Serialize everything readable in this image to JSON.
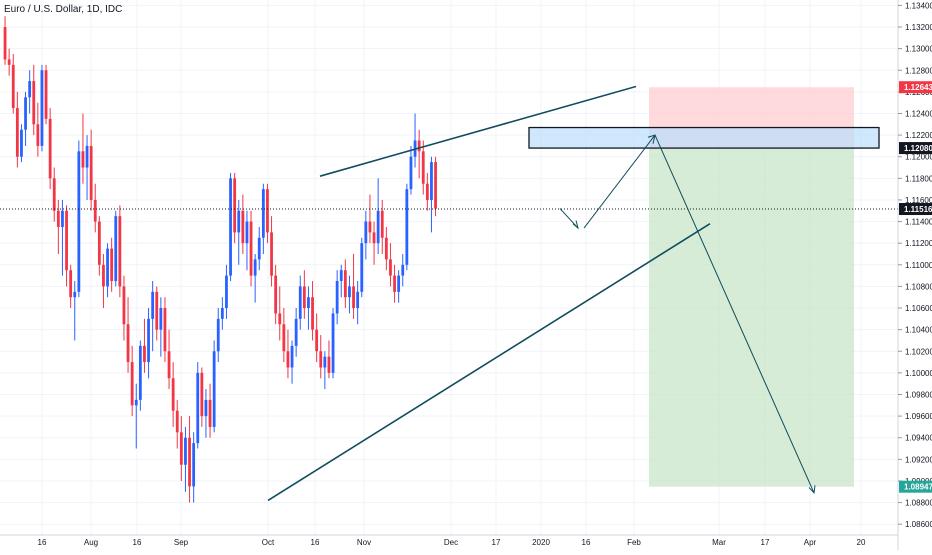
{
  "header": {
    "symbol_title": "Euro / U.S. Dollar, 1D, IDC"
  },
  "colors": {
    "up": "#2962ff",
    "down": "#f23645",
    "trendline": "#0f4c5c",
    "arrow": "#0f4c5c",
    "grid": "#f0f3fa",
    "axis_text": "#131722",
    "target_zone": "#c8e6c9",
    "stop_zone": "#ffcdd2",
    "resistance_box": "#bbdefb",
    "badge_red": "#f23645",
    "badge_green": "#26a69a",
    "badge_dark": "#131722"
  },
  "chart_data": {
    "type": "candlestick",
    "title": "Euro / U.S. Dollar, 1D, IDC",
    "xlabel": "",
    "ylabel": "",
    "ylim": [
      1.085,
      1.1345
    ],
    "y_ticks": [
      "1.13400",
      "1.13200",
      "1.13000",
      "1.12800",
      "1.12600",
      "1.12400",
      "1.12200",
      "1.12000",
      "1.11800",
      "1.11600",
      "1.11400",
      "1.11200",
      "1.11000",
      "1.10800",
      "1.10600",
      "1.10400",
      "1.10200",
      "1.10000",
      "1.09800",
      "1.09600",
      "1.09400",
      "1.09200",
      "1.09000",
      "1.08800",
      "1.08600"
    ],
    "x_ticks": [
      "16",
      "Aug",
      "16",
      "Sep",
      "Oct",
      "16",
      "Nov",
      "Dec",
      "17",
      "2020",
      "16",
      "Feb",
      "Mar",
      "17",
      "Apr",
      "20"
    ],
    "grid": true,
    "price_badges": [
      {
        "label": "1.12643",
        "value": 1.12643,
        "style": "red"
      },
      {
        "label": "1.12080",
        "value": 1.1208,
        "style": "dark"
      },
      {
        "label": "1.11516",
        "value": 1.11516,
        "style": "dark"
      },
      {
        "label": "1.08947",
        "value": 1.08947,
        "style": "green"
      }
    ],
    "current_price": 1.11516,
    "candles": [
      {
        "o": 1.132,
        "h": 1.133,
        "l": 1.1285,
        "c": 1.129
      },
      {
        "o": 1.129,
        "h": 1.13,
        "l": 1.1275,
        "c": 1.1285
      },
      {
        "o": 1.1285,
        "h": 1.1295,
        "l": 1.124,
        "c": 1.1245
      },
      {
        "o": 1.1245,
        "h": 1.126,
        "l": 1.119,
        "c": 1.12
      },
      {
        "o": 1.12,
        "h": 1.123,
        "l": 1.1195,
        "c": 1.1225
      },
      {
        "o": 1.1225,
        "h": 1.126,
        "l": 1.121,
        "c": 1.1255
      },
      {
        "o": 1.1255,
        "h": 1.128,
        "l": 1.124,
        "c": 1.127
      },
      {
        "o": 1.127,
        "h": 1.1285,
        "l": 1.122,
        "c": 1.123
      },
      {
        "o": 1.123,
        "h": 1.125,
        "l": 1.12,
        "c": 1.121
      },
      {
        "o": 1.121,
        "h": 1.1285,
        "l": 1.1205,
        "c": 1.128
      },
      {
        "o": 1.128,
        "h": 1.1285,
        "l": 1.123,
        "c": 1.1235
      },
      {
        "o": 1.1235,
        "h": 1.1245,
        "l": 1.117,
        "c": 1.118
      },
      {
        "o": 1.118,
        "h": 1.119,
        "l": 1.114,
        "c": 1.115
      },
      {
        "o": 1.115,
        "h": 1.116,
        "l": 1.111,
        "c": 1.1135
      },
      {
        "o": 1.1135,
        "h": 1.116,
        "l": 1.109,
        "c": 1.115
      },
      {
        "o": 1.115,
        "h": 1.1155,
        "l": 1.108,
        "c": 1.1095
      },
      {
        "o": 1.1095,
        "h": 1.11,
        "l": 1.106,
        "c": 1.107
      },
      {
        "o": 1.107,
        "h": 1.1085,
        "l": 1.103,
        "c": 1.1075
      },
      {
        "o": 1.1075,
        "h": 1.1215,
        "l": 1.107,
        "c": 1.1205
      },
      {
        "o": 1.1205,
        "h": 1.124,
        "l": 1.1175,
        "c": 1.119
      },
      {
        "o": 1.119,
        "h": 1.122,
        "l": 1.116,
        "c": 1.121
      },
      {
        "o": 1.121,
        "h": 1.1225,
        "l": 1.115,
        "c": 1.116
      },
      {
        "o": 1.116,
        "h": 1.1175,
        "l": 1.113,
        "c": 1.114
      },
      {
        "o": 1.114,
        "h": 1.1145,
        "l": 1.109,
        "c": 1.11
      },
      {
        "o": 1.11,
        "h": 1.111,
        "l": 1.106,
        "c": 1.108
      },
      {
        "o": 1.108,
        "h": 1.112,
        "l": 1.107,
        "c": 1.1115
      },
      {
        "o": 1.1115,
        "h": 1.1125,
        "l": 1.1075,
        "c": 1.1085
      },
      {
        "o": 1.1085,
        "h": 1.115,
        "l": 1.108,
        "c": 1.1145
      },
      {
        "o": 1.1145,
        "h": 1.1155,
        "l": 1.107,
        "c": 1.108
      },
      {
        "o": 1.108,
        "h": 1.109,
        "l": 1.103,
        "c": 1.1045
      },
      {
        "o": 1.1045,
        "h": 1.107,
        "l": 1.1,
        "c": 1.101
      },
      {
        "o": 1.101,
        "h": 1.1025,
        "l": 1.096,
        "c": 1.097
      },
      {
        "o": 1.097,
        "h": 1.099,
        "l": 1.093,
        "c": 1.0975
      },
      {
        "o": 1.0975,
        "h": 1.103,
        "l": 1.0965,
        "c": 1.1025
      },
      {
        "o": 1.1025,
        "h": 1.105,
        "l": 1.1,
        "c": 1.101
      },
      {
        "o": 1.101,
        "h": 1.106,
        "l": 1.0995,
        "c": 1.105
      },
      {
        "o": 1.105,
        "h": 1.1085,
        "l": 1.102,
        "c": 1.1075
      },
      {
        "o": 1.1075,
        "h": 1.108,
        "l": 1.103,
        "c": 1.104
      },
      {
        "o": 1.104,
        "h": 1.107,
        "l": 1.1015,
        "c": 1.106
      },
      {
        "o": 1.106,
        "h": 1.107,
        "l": 1.101,
        "c": 1.102
      },
      {
        "o": 1.102,
        "h": 1.104,
        "l": 1.0985,
        "c": 1.0995
      },
      {
        "o": 1.0995,
        "h": 1.101,
        "l": 1.095,
        "c": 1.0965
      },
      {
        "o": 1.0965,
        "h": 1.0975,
        "l": 1.093,
        "c": 1.0945
      },
      {
        "o": 1.0945,
        "h": 1.096,
        "l": 1.09,
        "c": 1.0915
      },
      {
        "o": 1.0915,
        "h": 1.095,
        "l": 1.089,
        "c": 1.094
      },
      {
        "o": 1.094,
        "h": 1.096,
        "l": 1.088,
        "c": 1.0895
      },
      {
        "o": 1.0895,
        "h": 1.0945,
        "l": 1.088,
        "c": 1.0935
      },
      {
        "o": 1.0935,
        "h": 1.101,
        "l": 1.093,
        "c": 1.1
      },
      {
        "o": 1.1,
        "h": 1.1005,
        "l": 1.095,
        "c": 1.096
      },
      {
        "o": 1.096,
        "h": 1.0985,
        "l": 1.094,
        "c": 1.0975
      },
      {
        "o": 1.0975,
        "h": 1.099,
        "l": 1.094,
        "c": 1.095
      },
      {
        "o": 1.095,
        "h": 1.103,
        "l": 1.0945,
        "c": 1.102
      },
      {
        "o": 1.102,
        "h": 1.106,
        "l": 1.101,
        "c": 1.105
      },
      {
        "o": 1.105,
        "h": 1.107,
        "l": 1.104,
        "c": 1.106
      },
      {
        "o": 1.106,
        "h": 1.11,
        "l": 1.105,
        "c": 1.109
      },
      {
        "o": 1.109,
        "h": 1.1185,
        "l": 1.1085,
        "c": 1.118
      },
      {
        "o": 1.118,
        "h": 1.1185,
        "l": 1.112,
        "c": 1.113
      },
      {
        "o": 1.113,
        "h": 1.116,
        "l": 1.11,
        "c": 1.115
      },
      {
        "o": 1.115,
        "h": 1.1165,
        "l": 1.111,
        "c": 1.112
      },
      {
        "o": 1.112,
        "h": 1.115,
        "l": 1.1095,
        "c": 1.114
      },
      {
        "o": 1.114,
        "h": 1.115,
        "l": 1.108,
        "c": 1.109
      },
      {
        "o": 1.109,
        "h": 1.111,
        "l": 1.1065,
        "c": 1.1105
      },
      {
        "o": 1.1105,
        "h": 1.1135,
        "l": 1.1095,
        "c": 1.1125
      },
      {
        "o": 1.1125,
        "h": 1.1175,
        "l": 1.111,
        "c": 1.117
      },
      {
        "o": 1.117,
        "h": 1.1175,
        "l": 1.112,
        "c": 1.113
      },
      {
        "o": 1.113,
        "h": 1.1145,
        "l": 1.108,
        "c": 1.109
      },
      {
        "o": 1.109,
        "h": 1.11,
        "l": 1.1045,
        "c": 1.1055
      },
      {
        "o": 1.1055,
        "h": 1.108,
        "l": 1.103,
        "c": 1.1045
      },
      {
        "o": 1.1045,
        "h": 1.106,
        "l": 1.101,
        "c": 1.102
      },
      {
        "o": 1.102,
        "h": 1.104,
        "l": 1.0995,
        "c": 1.1005
      },
      {
        "o": 1.1005,
        "h": 1.103,
        "l": 1.099,
        "c": 1.1025
      },
      {
        "o": 1.1025,
        "h": 1.106,
        "l": 1.1015,
        "c": 1.105
      },
      {
        "o": 1.105,
        "h": 1.109,
        "l": 1.104,
        "c": 1.108
      },
      {
        "o": 1.108,
        "h": 1.1095,
        "l": 1.105,
        "c": 1.106
      },
      {
        "o": 1.106,
        "h": 1.108,
        "l": 1.104,
        "c": 1.107
      },
      {
        "o": 1.107,
        "h": 1.1085,
        "l": 1.103,
        "c": 1.104
      },
      {
        "o": 1.104,
        "h": 1.1055,
        "l": 1.101,
        "c": 1.102
      },
      {
        "o": 1.102,
        "h": 1.1035,
        "l": 1.0995,
        "c": 1.1005
      },
      {
        "o": 1.1005,
        "h": 1.102,
        "l": 1.0985,
        "c": 1.1015
      },
      {
        "o": 1.1015,
        "h": 1.103,
        "l": 1.0995,
        "c": 1.1
      },
      {
        "o": 1.1,
        "h": 1.106,
        "l": 1.0995,
        "c": 1.1055
      },
      {
        "o": 1.1055,
        "h": 1.1095,
        "l": 1.1045,
        "c": 1.1085
      },
      {
        "o": 1.1085,
        "h": 1.11,
        "l": 1.107,
        "c": 1.1095
      },
      {
        "o": 1.1095,
        "h": 1.1105,
        "l": 1.106,
        "c": 1.107
      },
      {
        "o": 1.107,
        "h": 1.109,
        "l": 1.1055,
        "c": 1.108
      },
      {
        "o": 1.108,
        "h": 1.111,
        "l": 1.105,
        "c": 1.106
      },
      {
        "o": 1.106,
        "h": 1.1085,
        "l": 1.1045,
        "c": 1.1075
      },
      {
        "o": 1.1075,
        "h": 1.1125,
        "l": 1.107,
        "c": 1.112
      },
      {
        "o": 1.112,
        "h": 1.115,
        "l": 1.1105,
        "c": 1.114
      },
      {
        "o": 1.114,
        "h": 1.1165,
        "l": 1.112,
        "c": 1.113
      },
      {
        "o": 1.113,
        "h": 1.114,
        "l": 1.11,
        "c": 1.112
      },
      {
        "o": 1.112,
        "h": 1.118,
        "l": 1.111,
        "c": 1.115
      },
      {
        "o": 1.115,
        "h": 1.116,
        "l": 1.111,
        "c": 1.1125
      },
      {
        "o": 1.1125,
        "h": 1.1135,
        "l": 1.1095,
        "c": 1.1105
      },
      {
        "o": 1.1105,
        "h": 1.112,
        "l": 1.108,
        "c": 1.109
      },
      {
        "o": 1.109,
        "h": 1.11,
        "l": 1.1065,
        "c": 1.1075
      },
      {
        "o": 1.1075,
        "h": 1.1095,
        "l": 1.1065,
        "c": 1.109
      },
      {
        "o": 1.109,
        "h": 1.111,
        "l": 1.108,
        "c": 1.11
      },
      {
        "o": 1.11,
        "h": 1.1175,
        "l": 1.1095,
        "c": 1.117
      },
      {
        "o": 1.117,
        "h": 1.121,
        "l": 1.1165,
        "c": 1.12
      },
      {
        "o": 1.12,
        "h": 1.124,
        "l": 1.119,
        "c": 1.1215
      },
      {
        "o": 1.1215,
        "h": 1.1225,
        "l": 1.118,
        "c": 1.1205
      },
      {
        "o": 1.1205,
        "h": 1.1215,
        "l": 1.1165,
        "c": 1.1175
      },
      {
        "o": 1.1175,
        "h": 1.1185,
        "l": 1.115,
        "c": 1.116
      },
      {
        "o": 1.116,
        "h": 1.12,
        "l": 1.113,
        "c": 1.1195
      },
      {
        "o": 1.1195,
        "h": 1.12,
        "l": 1.1145,
        "c": 1.1152
      }
    ],
    "trendlines": [
      {
        "name": "upper",
        "from": {
          "bar": 56,
          "price": 1.1182
        },
        "to": {
          "bar": 160,
          "price": 1.1265
        }
      },
      {
        "name": "lower",
        "from": {
          "bar": 46,
          "price": 1.0882
        },
        "to": {
          "bar": 168,
          "price": 1.1138
        }
      },
      {
        "name": "upper-resistance-top",
        "from": {
          "bar": 130,
          "price": 1.1182
        },
        "to": {
          "bar": 130,
          "price": 1.1182
        }
      }
    ],
    "resistance_box": {
      "from_bar": 122,
      "to_bar": 226,
      "top": 1.1227,
      "bottom": 1.1208
    },
    "position": {
      "from_bar": 148,
      "to_bar": 196,
      "entry": 1.1208,
      "stop": 1.12643,
      "target": 1.08947
    },
    "projection_path": [
      {
        "bar": 127,
        "price": 1.1152
      },
      {
        "bar": 133,
        "price": 1.1132
      },
      {
        "bar": 150,
        "price": 1.122
      },
      {
        "bar": 186,
        "price": 1.0887
      }
    ]
  }
}
